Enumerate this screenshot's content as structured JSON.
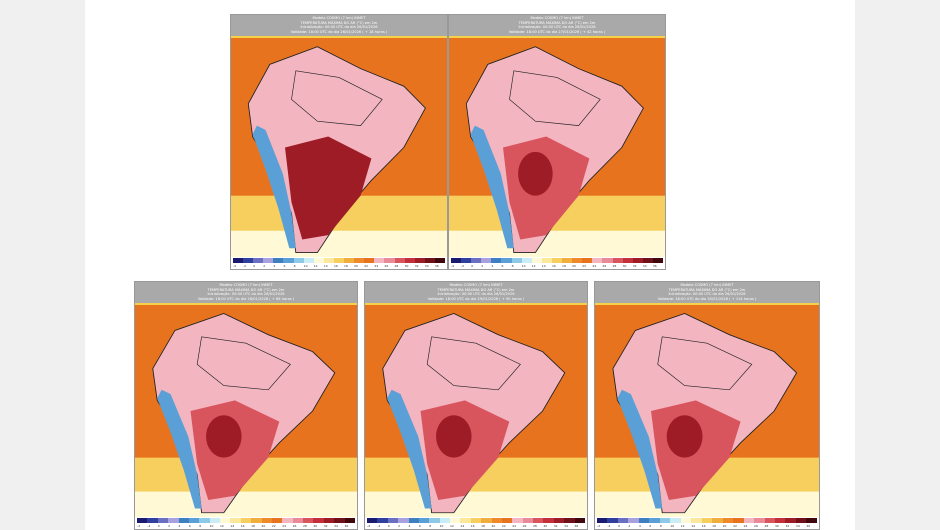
{
  "panels": [
    {
      "model": "Modelo COSMO (7 km) INMET",
      "variable": "TEMPERATURA MÁXIMA DO AR (°C) em 2m",
      "init": "Inicialização: 00:00 UTC do dia 26/01/2026",
      "valid": "Validade: 18:00 UTC do dia 26/01/2026 ( + 18 horas )"
    },
    {
      "model": "Modelo COSMO (7 km) INMET",
      "variable": "TEMPERATURA MÁXIMA DO AR (°C) em 2m",
      "init": "Inicialização: 00:00 UTC do dia 26/01/2026",
      "valid": "Validade: 18:00 UTC do dia 27/01/2026 ( + 42 horas )"
    },
    {
      "model": "Modelo COSMO (7 km) INMET",
      "variable": "TEMPERATURA MÁXIMA DO AR (°C) em 2m",
      "init": "Inicialização: 00:00 UTC do dia 26/01/2026",
      "valid": "Validade: 18:00 UTC do dia 28/01/2026 ( + 66 horas )"
    },
    {
      "model": "Modelo COSMO (7 km) INMET",
      "variable": "TEMPERATURA MÁXIMA DO AR (°C) em 2m",
      "init": "Inicialização: 00:00 UTC do dia 26/01/2026",
      "valid": "Validade: 18:00 UTC do dia 29/01/2026 ( + 90 horas )"
    },
    {
      "model": "Modelo COSMO (7 km) INMET",
      "variable": "TEMPERATURA MÁXIMA DO AR (°C) em 2m",
      "init": "Inicialização: 00:00 UTC do dia 26/01/2026",
      "valid": "Validade: 18:00 UTC do dia 30/01/2026 ( + 114 horas )"
    }
  ],
  "colorbar": {
    "colors": [
      "#1a1a6e",
      "#2e3f9e",
      "#6a6fc2",
      "#a7a2de",
      "#3d7fc0",
      "#5aa0d6",
      "#8fc9e8",
      "#c9ecf5",
      "#fff9d6",
      "#fbe89a",
      "#f7cf5e",
      "#f2ae3d",
      "#ee8a2a",
      "#e8731e",
      "#f3b5c0",
      "#e98a99",
      "#d9555e",
      "#c4303a",
      "#9e1c25",
      "#701018",
      "#40080c"
    ],
    "ticks": [
      "-4",
      "-2",
      "0",
      "2",
      "4",
      "6",
      "8",
      "10",
      "12",
      "14",
      "16",
      "18",
      "20",
      "22",
      "24",
      "26",
      "28",
      "30",
      "32",
      "34",
      "36"
    ]
  },
  "colors": {
    "ocean": "#e8731e",
    "land_hot": "#d9555e",
    "land_very_hot": "#9e1c25",
    "land_mild": "#f3b5c0",
    "andes_cold": "#5aa0d6",
    "south_cool": "#f7cf5e"
  }
}
